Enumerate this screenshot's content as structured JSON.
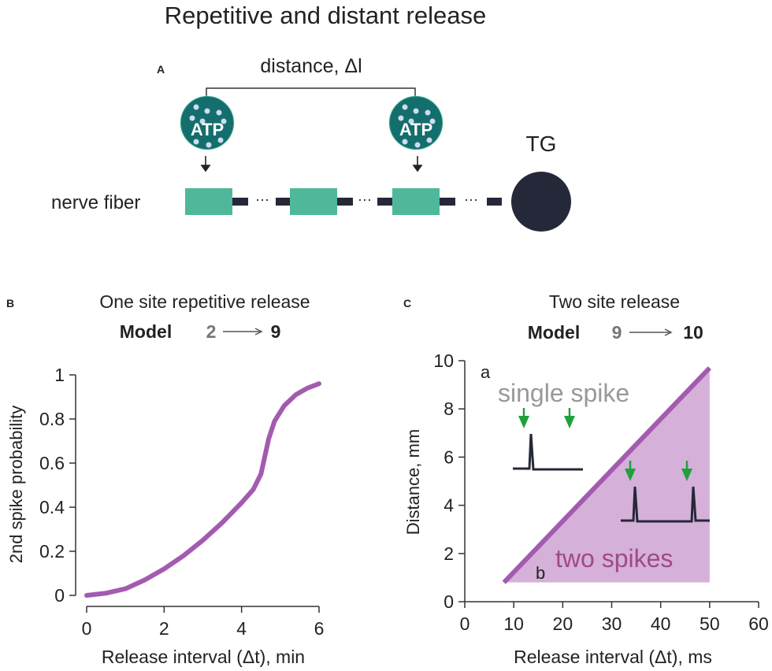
{
  "title": "Repetitive and distant release",
  "panel_a": {
    "label": "A",
    "distance_label": "distance, Δl",
    "atp_label": "ATP",
    "tg_label": "TG",
    "fiber_label": "nerve fiber",
    "dots": "···",
    "colors": {
      "atp": "#156e6e",
      "node": "#4fb89a",
      "fiber": "#252838"
    }
  },
  "chart_data": [
    {
      "panel_label": "B",
      "type": "line",
      "title": "One site repetitive release",
      "model_word": "Model",
      "model_from": "2",
      "model_arrow": "—→",
      "model_to": "9",
      "xlabel": "Release interval (Δt), min",
      "ylabel": "2nd  spike probability",
      "xlim": [
        0,
        6
      ],
      "ylim": [
        0,
        1
      ],
      "xticks": [
        "0",
        "2",
        "4",
        "6"
      ],
      "yticks": [
        "0",
        "0.2",
        "0.4",
        "0.6",
        "0.8",
        "1"
      ],
      "series": [
        {
          "name": "2nd spike probability",
          "color": "#a35bb0",
          "x": [
            0,
            0.5,
            1,
            1.5,
            2,
            2.5,
            3,
            3.5,
            4,
            4.3,
            4.5,
            4.6,
            4.7,
            4.85,
            5.1,
            5.4,
            5.7,
            6
          ],
          "y": [
            0,
            0.01,
            0.03,
            0.07,
            0.12,
            0.18,
            0.25,
            0.33,
            0.42,
            0.48,
            0.55,
            0.63,
            0.71,
            0.79,
            0.86,
            0.91,
            0.94,
            0.96
          ]
        }
      ]
    },
    {
      "panel_label": "C",
      "type": "area",
      "title": "Two site  release",
      "model_word": "Model",
      "model_from": "9",
      "model_arrow": "—→",
      "model_to": "10",
      "xlabel": "Release interval (Δt), ms",
      "ylabel": "Distance, mm",
      "xlim": [
        0,
        60
      ],
      "ylim": [
        0,
        10
      ],
      "xticks": [
        "0",
        "10",
        "20",
        "30",
        "40",
        "50",
        "60"
      ],
      "yticks": [
        "0",
        "2",
        "4",
        "6",
        "8",
        "10"
      ],
      "boundary": {
        "x": [
          8,
          50
        ],
        "y": [
          0.8,
          9.7
        ],
        "color": "#a35bb0"
      },
      "region": {
        "x": [
          8,
          50,
          50
        ],
        "y": [
          0.8,
          9.7,
          0.8
        ],
        "color": "#d5b0d9"
      },
      "annotations": {
        "a": "a",
        "b": "b",
        "single": "single spike",
        "two": "two spikes"
      }
    }
  ]
}
